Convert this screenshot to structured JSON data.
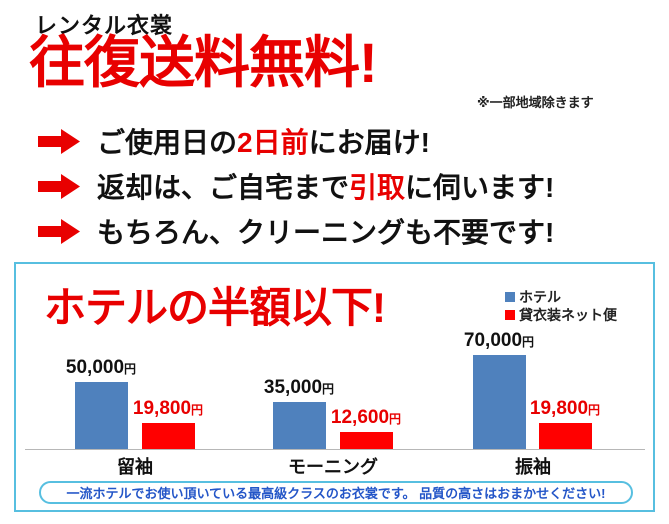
{
  "header": {
    "small_title": "レンタル衣裳",
    "headline": "往復送料無料!",
    "headline_note": "※一部地域除きます"
  },
  "bullets": [
    {
      "parts": [
        {
          "text": "ご使用日の"
        },
        {
          "text": "2日前"
        },
        {
          "text": "にお届け!"
        }
      ]
    },
    {
      "parts": [
        {
          "text": "返却は、ご自宅まで"
        },
        {
          "text": "引取"
        },
        {
          "text": "に伺います!"
        }
      ]
    },
    {
      "parts": [
        {
          "text": "もちろん、クリーニングも不要です!"
        }
      ]
    }
  ],
  "price_box": {
    "title": "ホテルの半額以下!",
    "yen_suffix": "円",
    "groups": [
      {
        "category": "留袖",
        "hotel_label": "50,000",
        "ours_label": "19,800"
      },
      {
        "category": "モーニング",
        "hotel_label": "35,000",
        "ours_label": "12,600"
      },
      {
        "category": "振袖",
        "hotel_label": "70,000",
        "ours_label": "19,800"
      }
    ],
    "note": "一流ホテルでお使い頂いている最高級クラスのお衣裳です。 品質の高さはおまかせください!"
  },
  "chart_data": {
    "type": "bar",
    "title": "ホテルの半額以下!",
    "categories": [
      "留袖",
      "モーニング",
      "振袖"
    ],
    "series": [
      {
        "name": "ホテル",
        "values": [
          50000,
          35000,
          70000
        ],
        "color": "#4f81bd"
      },
      {
        "name": "貸衣装ネット便",
        "values": [
          19800,
          12600,
          19800
        ],
        "color": "#ff0000"
      }
    ],
    "unit": "円",
    "ylim": [
      0,
      75000
    ],
    "grid": false,
    "legend_position": "top-right",
    "value_labels": "above-bars"
  },
  "colors": {
    "accent_red": "#e80000",
    "bar_blue": "#4f81bd",
    "bar_red": "#ff0000",
    "box_border_blue": "#57bfe0",
    "note_text_blue": "#2456c8"
  }
}
